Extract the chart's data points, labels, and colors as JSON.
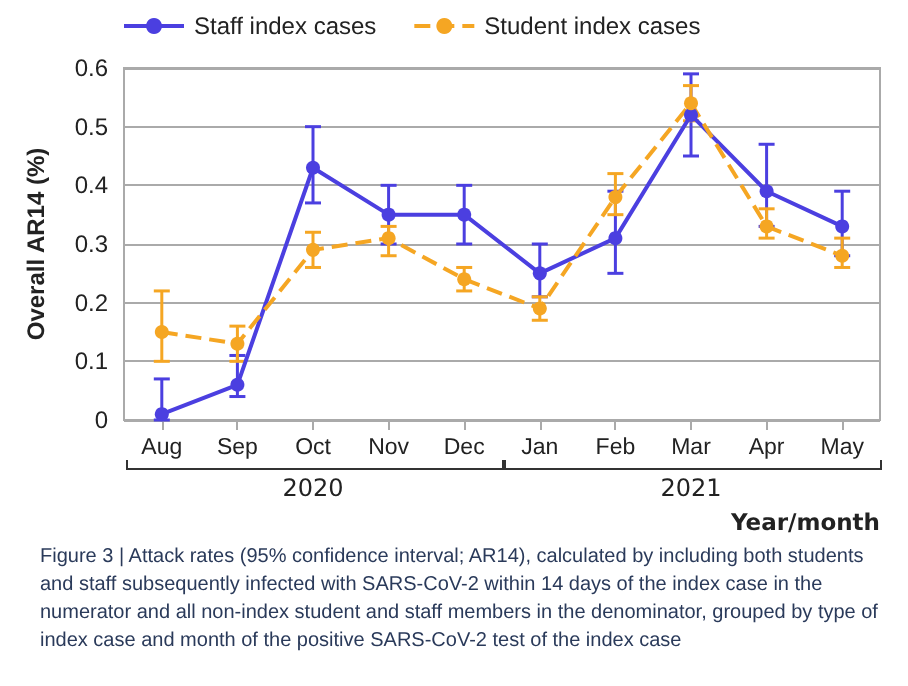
{
  "chart_data": {
    "type": "line",
    "xlabel": "Year/month",
    "ylabel": "Overall AR14 (%)",
    "categories": [
      "Aug",
      "Sep",
      "Oct",
      "Nov",
      "Dec",
      "Jan",
      "Feb",
      "Mar",
      "Apr",
      "May"
    ],
    "series": [
      {
        "name": "Staff index cases",
        "color": "#4b3fe0",
        "line_style": "solid",
        "values": [
          0.01,
          0.06,
          0.43,
          0.35,
          0.35,
          0.25,
          0.31,
          0.52,
          0.39,
          0.33
        ],
        "errors": [
          [
            0,
            0.07
          ],
          [
            0.04,
            0.11
          ],
          [
            0.37,
            0.5
          ],
          [
            0.3,
            0.4
          ],
          [
            0.3,
            0.4
          ],
          [
            0.21,
            0.3
          ],
          [
            0.25,
            0.39
          ],
          [
            0.45,
            0.59
          ],
          [
            0.33,
            0.47
          ],
          [
            0.28,
            0.39
          ]
        ]
      },
      {
        "name": "Student index cases",
        "color": "#f5a623",
        "line_style": "dashed",
        "values": [
          0.15,
          0.13,
          0.29,
          0.31,
          0.24,
          0.19,
          0.38,
          0.54,
          0.33,
          0.28
        ],
        "errors": [
          [
            0.1,
            0.22
          ],
          [
            0.1,
            0.16
          ],
          [
            0.26,
            0.32
          ],
          [
            0.28,
            0.33
          ],
          [
            0.22,
            0.26
          ],
          [
            0.17,
            0.21
          ],
          [
            0.35,
            0.42
          ],
          [
            0.51,
            0.57
          ],
          [
            0.31,
            0.36
          ],
          [
            0.26,
            0.31
          ]
        ]
      }
    ],
    "ylim": [
      0,
      0.6
    ],
    "yticks": [
      0,
      0.1,
      0.2,
      0.3,
      0.4,
      0.5,
      0.6
    ],
    "grid": "y",
    "legend": "top left",
    "marker": "circle",
    "annotations": [
      "2020",
      "2021",
      "Figure 3 | Attack rates (95% confidence interval; AR14), calculated by including both students and staff subsequently infected with SARS-CoV-2 within 14 days of the index case in the numerator and all non-index student and staff members in the denominator, grouped by type of index case and month of the positive SARS-CoV-2 test of the index case"
    ]
  }
}
